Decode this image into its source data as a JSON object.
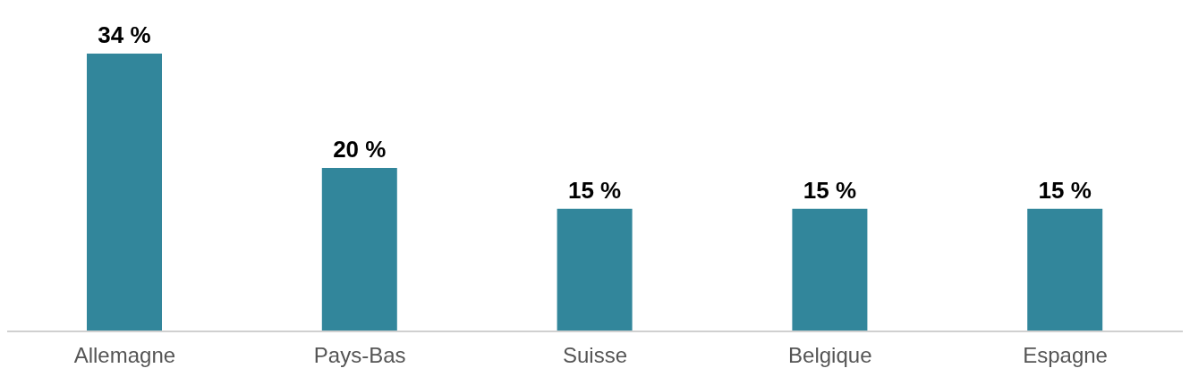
{
  "chart_data": {
    "type": "bar",
    "categories": [
      "Allemagne",
      "Pays-Bas",
      "Suisse",
      "Belgique",
      "Espagne"
    ],
    "values": [
      34,
      20,
      15,
      15,
      15
    ],
    "value_labels": [
      "34 %",
      "20 %",
      "15 %",
      "15 %",
      "15 %"
    ],
    "color": "#32869b",
    "grid": false,
    "legend": false
  }
}
